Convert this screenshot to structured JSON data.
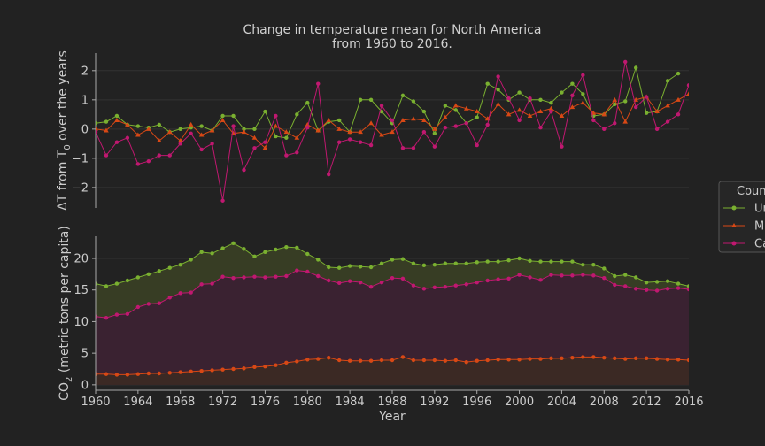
{
  "chart_data": [
    {
      "type": "line",
      "title": "Change in temperature mean for North America\nfrom 1960 to 2016.",
      "ylabel": "ΔT from T0 over the years",
      "ylim": [
        -2.7,
        2.6
      ],
      "yticks": [
        -2,
        -1,
        0,
        1,
        2
      ],
      "xlim": [
        1960,
        2016
      ],
      "grid": true,
      "x": [
        1960,
        1961,
        1962,
        1963,
        1964,
        1965,
        1966,
        1967,
        1968,
        1969,
        1970,
        1971,
        1972,
        1973,
        1974,
        1975,
        1976,
        1977,
        1978,
        1979,
        1980,
        1981,
        1982,
        1983,
        1984,
        1985,
        1986,
        1987,
        1988,
        1989,
        1990,
        1991,
        1992,
        1993,
        1994,
        1995,
        1996,
        1997,
        1998,
        1999,
        2000,
        2001,
        2002,
        2003,
        2004,
        2005,
        2006,
        2007,
        2008,
        2009,
        2010,
        2011,
        2012,
        2013,
        2014,
        2015,
        2016
      ],
      "series": [
        {
          "name": "United States",
          "color": "#7ab030",
          "marker": "circle",
          "values": [
            0.2,
            0.25,
            0.45,
            0.15,
            0.1,
            0.05,
            0.15,
            -0.1,
            0.0,
            0.05,
            0.1,
            -0.05,
            0.45,
            0.45,
            0.0,
            0.0,
            0.6,
            -0.25,
            -0.3,
            0.5,
            0.9,
            -0.05,
            0.25,
            0.3,
            -0.1,
            1.0,
            1.0,
            0.6,
            0.2,
            1.15,
            0.95,
            0.6,
            -0.15,
            0.8,
            0.65,
            0.2,
            0.4,
            1.55,
            1.35,
            1.0,
            1.25,
            1.0,
            1.0,
            0.9,
            1.25,
            1.55,
            1.2,
            0.45,
            0.5,
            0.85,
            0.95,
            2.1,
            0.55,
            0.6,
            1.65,
            1.9,
            null
          ]
        },
        {
          "name": "Mexico",
          "color": "#d84815",
          "marker": "triangle",
          "values": [
            0.0,
            -0.05,
            0.3,
            0.15,
            -0.2,
            0.0,
            -0.4,
            -0.1,
            -0.4,
            0.15,
            -0.2,
            -0.05,
            0.3,
            -0.15,
            -0.1,
            -0.3,
            -0.65,
            0.1,
            -0.1,
            -0.3,
            0.15,
            -0.05,
            0.3,
            0.0,
            -0.1,
            -0.1,
            0.2,
            -0.2,
            -0.1,
            0.3,
            0.35,
            0.3,
            0.0,
            0.4,
            0.8,
            0.7,
            0.6,
            0.35,
            0.85,
            0.5,
            0.65,
            0.45,
            0.6,
            0.7,
            0.45,
            0.75,
            0.9,
            0.55,
            0.5,
            1.0,
            0.25,
            1.0,
            1.1,
            0.6,
            0.8,
            1.0,
            1.2
          ]
        },
        {
          "name": "Canada",
          "color": "#c01870",
          "marker": "circle",
          "values": [
            -0.1,
            -0.9,
            -0.45,
            -0.3,
            -1.2,
            -1.1,
            -0.9,
            -0.9,
            -0.5,
            -0.15,
            -0.7,
            -0.5,
            -2.45,
            0.1,
            -1.4,
            -0.65,
            -0.45,
            0.45,
            -0.9,
            -0.8,
            0.05,
            1.55,
            -1.55,
            -0.45,
            -0.35,
            -0.45,
            -0.55,
            0.8,
            0.3,
            -0.65,
            -0.65,
            -0.1,
            -0.6,
            0.05,
            0.1,
            0.2,
            -0.55,
            0.15,
            1.8,
            1.05,
            0.3,
            1.05,
            0.05,
            0.6,
            -0.6,
            1.15,
            1.85,
            0.3,
            0.0,
            0.2,
            2.3,
            0.75,
            1.1,
            0.0,
            0.25,
            0.5,
            1.5
          ]
        }
      ]
    },
    {
      "type": "area",
      "ylabel": "CO2 (metric tons per capita)",
      "xlabel": "Year",
      "ylim": [
        -1.0,
        23.5
      ],
      "yticks": [
        0,
        5,
        10,
        15,
        20
      ],
      "xlim": [
        1960,
        2016
      ],
      "xticks": [
        1960,
        1964,
        1968,
        1972,
        1976,
        1980,
        1984,
        1988,
        1992,
        1996,
        2000,
        2004,
        2008,
        2012,
        2016
      ],
      "grid": true,
      "x": [
        1960,
        1961,
        1962,
        1963,
        1964,
        1965,
        1966,
        1967,
        1968,
        1969,
        1970,
        1971,
        1972,
        1973,
        1974,
        1975,
        1976,
        1977,
        1978,
        1979,
        1980,
        1981,
        1982,
        1983,
        1984,
        1985,
        1986,
        1987,
        1988,
        1989,
        1990,
        1991,
        1992,
        1993,
        1994,
        1995,
        1996,
        1997,
        1998,
        1999,
        2000,
        2001,
        2002,
        2003,
        2004,
        2005,
        2006,
        2007,
        2008,
        2009,
        2010,
        2011,
        2012,
        2013,
        2014,
        2015,
        2016
      ],
      "series": [
        {
          "name": "United States",
          "color": "#7ab030",
          "fill": "#373d24",
          "values": [
            16.0,
            15.6,
            16.0,
            16.5,
            17.0,
            17.5,
            18.0,
            18.5,
            19.0,
            19.8,
            21.0,
            20.8,
            21.6,
            22.4,
            21.5,
            20.3,
            21.0,
            21.4,
            21.8,
            21.7,
            20.7,
            19.8,
            18.6,
            18.5,
            18.8,
            18.7,
            18.6,
            19.2,
            19.8,
            19.9,
            19.2,
            18.9,
            19.0,
            19.2,
            19.2,
            19.2,
            19.4,
            19.5,
            19.5,
            19.7,
            20.0,
            19.6,
            19.5,
            19.5,
            19.5,
            19.5,
            19.0,
            19.0,
            18.4,
            17.2,
            17.4,
            17.0,
            16.2,
            16.3,
            16.4,
            16.0,
            15.6
          ]
        },
        {
          "name": "Canada",
          "color": "#c01870",
          "fill": "#3a2231",
          "values": [
            10.8,
            10.6,
            11.1,
            11.2,
            12.3,
            12.8,
            12.9,
            13.8,
            14.5,
            14.6,
            15.9,
            16.0,
            17.1,
            16.9,
            17.0,
            17.1,
            17.0,
            17.1,
            17.2,
            18.1,
            17.9,
            17.2,
            16.5,
            16.1,
            16.4,
            16.2,
            15.5,
            16.2,
            16.9,
            16.8,
            15.7,
            15.2,
            15.4,
            15.5,
            15.7,
            15.9,
            16.2,
            16.5,
            16.7,
            16.8,
            17.4,
            17.0,
            16.6,
            17.4,
            17.3,
            17.3,
            17.4,
            17.3,
            16.9,
            15.8,
            15.6,
            15.2,
            15.0,
            14.9,
            15.2,
            15.3,
            15.1
          ]
        },
        {
          "name": "Mexico",
          "color": "#d84815",
          "fill": "#3b2924",
          "values": [
            1.7,
            1.7,
            1.6,
            1.6,
            1.7,
            1.8,
            1.8,
            1.9,
            2.0,
            2.1,
            2.2,
            2.3,
            2.4,
            2.5,
            2.6,
            2.8,
            2.9,
            3.1,
            3.5,
            3.7,
            4.0,
            4.1,
            4.3,
            3.9,
            3.8,
            3.8,
            3.8,
            3.9,
            3.9,
            4.4,
            3.9,
            3.9,
            3.9,
            3.8,
            3.9,
            3.6,
            3.8,
            3.9,
            4.0,
            4.0,
            4.0,
            4.1,
            4.1,
            4.2,
            4.2,
            4.3,
            4.4,
            4.4,
            4.3,
            4.2,
            4.1,
            4.2,
            4.2,
            4.1,
            4.0,
            4.0,
            3.9
          ]
        }
      ]
    }
  ],
  "legend": {
    "title": "Country",
    "placement": "center-right",
    "entries": [
      {
        "label": "United States",
        "color": "#7ab030",
        "marker": "circle"
      },
      {
        "label": "Mexico",
        "color": "#d84815",
        "marker": "triangle"
      },
      {
        "label": "Canada",
        "color": "#c01870",
        "marker": "circle"
      }
    ]
  }
}
